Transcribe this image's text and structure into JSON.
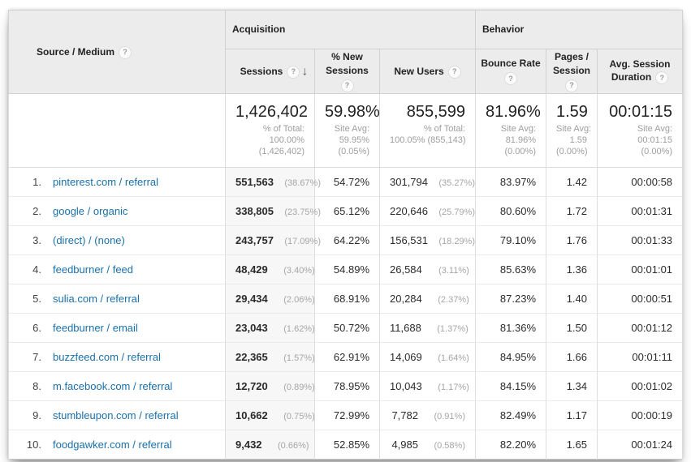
{
  "table_header": {
    "source_medium": "Source / Medium",
    "acquisition_group": "Acquisition",
    "behavior_group": "Behavior",
    "sessions": "Sessions",
    "new_sessions_line1": "% New",
    "new_sessions_line2": "Sessions",
    "new_users": "New Users",
    "bounce_rate": "Bounce Rate",
    "pages_session_line1": "Pages /",
    "pages_session_line2": "Session",
    "avg_duration_line1": "Avg. Session",
    "avg_duration_line2": "Duration",
    "help_glyph": "?",
    "sort_glyph": "↓"
  },
  "totals": {
    "sessions": {
      "value": "1,426,402",
      "sub": [
        "% of Total:",
        "100.00%",
        "(1,426,402)"
      ]
    },
    "percent_new_sessions": {
      "value": "59.98%",
      "sub": [
        "Site Avg:",
        "59.95%",
        "(0.05%)"
      ]
    },
    "new_users": {
      "value": "855,599",
      "sub": [
        "% of Total:",
        "100.05% (855,143)"
      ]
    },
    "bounce_rate": {
      "value": "81.96%",
      "sub": [
        "Site Avg:",
        "81.96%",
        "(0.00%)"
      ]
    },
    "pages_per_session": {
      "value": "1.59",
      "sub": [
        "Site Avg:",
        "1.59",
        "(0.00%)"
      ]
    },
    "avg_session_duration": {
      "value": "00:01:15",
      "sub": [
        "Site Avg:",
        "00:01:15",
        "(0.00%)"
      ]
    }
  },
  "rows": [
    {
      "index": "1.",
      "source": "pinterest.com / referral",
      "sessions": "551,563",
      "sessions_pct": "(38.67%)",
      "new_sessions": "54.72%",
      "new_users": "301,794",
      "new_users_pct": "(35.27%)",
      "bounce_rate": "83.97%",
      "pages_per_session": "1.42",
      "avg_session_duration": "00:00:58"
    },
    {
      "index": "2.",
      "source": "google / organic",
      "sessions": "338,805",
      "sessions_pct": "(23.75%)",
      "new_sessions": "65.12%",
      "new_users": "220,646",
      "new_users_pct": "(25.79%)",
      "bounce_rate": "80.60%",
      "pages_per_session": "1.72",
      "avg_session_duration": "00:01:31"
    },
    {
      "index": "3.",
      "source": "(direct) / (none)",
      "sessions": "243,757",
      "sessions_pct": "(17.09%)",
      "new_sessions": "64.22%",
      "new_users": "156,531",
      "new_users_pct": "(18.29%)",
      "bounce_rate": "79.10%",
      "pages_per_session": "1.76",
      "avg_session_duration": "00:01:33"
    },
    {
      "index": "4.",
      "source": "feedburner / feed",
      "sessions": "48,429",
      "sessions_pct": "(3.40%)",
      "new_sessions": "54.89%",
      "new_users": "26,584",
      "new_users_pct": "(3.11%)",
      "bounce_rate": "85.63%",
      "pages_per_session": "1.36",
      "avg_session_duration": "00:01:01"
    },
    {
      "index": "5.",
      "source": "sulia.com / referral",
      "sessions": "29,434",
      "sessions_pct": "(2.06%)",
      "new_sessions": "68.91%",
      "new_users": "20,284",
      "new_users_pct": "(2.37%)",
      "bounce_rate": "87.23%",
      "pages_per_session": "1.40",
      "avg_session_duration": "00:00:51"
    },
    {
      "index": "6.",
      "source": "feedburner / email",
      "sessions": "23,043",
      "sessions_pct": "(1.62%)",
      "new_sessions": "50.72%",
      "new_users": "11,688",
      "new_users_pct": "(1.37%)",
      "bounce_rate": "81.36%",
      "pages_per_session": "1.50",
      "avg_session_duration": "00:01:12"
    },
    {
      "index": "7.",
      "source": "buzzfeed.com / referral",
      "sessions": "22,365",
      "sessions_pct": "(1.57%)",
      "new_sessions": "62.91%",
      "new_users": "14,069",
      "new_users_pct": "(1.64%)",
      "bounce_rate": "84.95%",
      "pages_per_session": "1.66",
      "avg_session_duration": "00:01:11"
    },
    {
      "index": "8.",
      "source": "m.facebook.com / referral",
      "sessions": "12,720",
      "sessions_pct": "(0.89%)",
      "new_sessions": "78.95%",
      "new_users": "10,043",
      "new_users_pct": "(1.17%)",
      "bounce_rate": "84.15%",
      "pages_per_session": "1.34",
      "avg_session_duration": "00:01:02"
    },
    {
      "index": "9.",
      "source": "stumbleupon.com / referral",
      "sessions": "10,662",
      "sessions_pct": "(0.75%)",
      "new_sessions": "72.99%",
      "new_users": "7,782",
      "new_users_pct": "(0.91%)",
      "bounce_rate": "82.49%",
      "pages_per_session": "1.17",
      "avg_session_duration": "00:00:19"
    },
    {
      "index": "10.",
      "source": "foodgawker.com / referral",
      "sessions": "9,432",
      "sessions_pct": "(0.66%)",
      "new_sessions": "52.85%",
      "new_users": "4,985",
      "new_users_pct": "(0.58%)",
      "bounce_rate": "82.20%",
      "pages_per_session": "1.65",
      "avg_session_duration": "00:01:24"
    }
  ],
  "colors": {
    "link": "#1a70ab",
    "header_bg": "#ececec",
    "sorted_column_bg": "#f7f7f7",
    "muted_text": "#9e9e9e"
  }
}
